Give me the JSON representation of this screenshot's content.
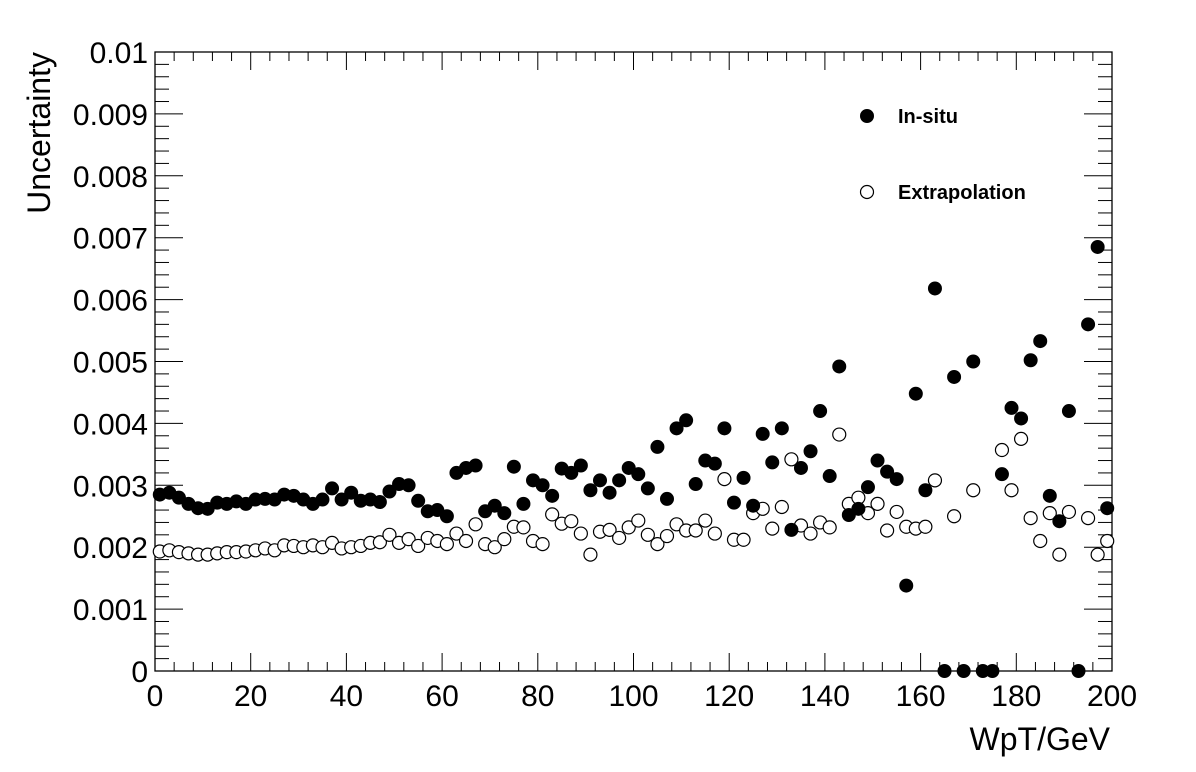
{
  "chart_data": {
    "type": "scatter",
    "title": "",
    "xlabel": "WpT/GeV",
    "ylabel": "Uncertainty",
    "xlim": [
      0,
      200
    ],
    "ylim": [
      0,
      0.01
    ],
    "x_ticks": [
      0,
      20,
      40,
      60,
      80,
      100,
      120,
      140,
      160,
      180,
      200
    ],
    "x_tick_labels": [
      "0",
      "20",
      "40",
      "60",
      "80",
      "100",
      "120",
      "140",
      "160",
      "180",
      "200"
    ],
    "y_ticks": [
      0,
      0.001,
      0.002,
      0.003,
      0.004,
      0.005,
      0.006,
      0.007,
      0.008,
      0.009,
      0.01
    ],
    "y_tick_labels": [
      "0",
      "0.001",
      "0.002",
      "0.003",
      "0.004",
      "0.005",
      "0.006",
      "0.007",
      "0.008",
      "0.009",
      "0.01"
    ],
    "grid": false,
    "legend_position": "top-right",
    "x": [
      1,
      3,
      5,
      7,
      9,
      11,
      13,
      15,
      17,
      19,
      21,
      23,
      25,
      27,
      29,
      31,
      33,
      35,
      37,
      39,
      41,
      43,
      45,
      47,
      49,
      51,
      53,
      55,
      57,
      59,
      61,
      63,
      65,
      67,
      69,
      71,
      73,
      75,
      77,
      79,
      81,
      83,
      85,
      87,
      89,
      91,
      93,
      95,
      97,
      99,
      101,
      103,
      105,
      107,
      109,
      111,
      113,
      115,
      117,
      119,
      121,
      123,
      125,
      127,
      129,
      131,
      133,
      135,
      137,
      139,
      141,
      143,
      145,
      147,
      149,
      151,
      153,
      155,
      157,
      159,
      161,
      163,
      165,
      167,
      169,
      171,
      173,
      175,
      177,
      179,
      181,
      183,
      185,
      187,
      189,
      191,
      193,
      195,
      197,
      199
    ],
    "series": [
      {
        "name": "In-situ",
        "marker": "filled-circle",
        "color": "#000000",
        "values": [
          0.00285,
          0.00288,
          0.0028,
          0.0027,
          0.00263,
          0.00262,
          0.00272,
          0.0027,
          0.00274,
          0.0027,
          0.00277,
          0.00278,
          0.00277,
          0.00285,
          0.00283,
          0.00277,
          0.0027,
          0.00277,
          0.00295,
          0.00277,
          0.00288,
          0.00275,
          0.00277,
          0.00273,
          0.0029,
          0.00302,
          0.003,
          0.00275,
          0.00258,
          0.0026,
          0.0025,
          0.0032,
          0.00328,
          0.00332,
          0.00258,
          0.00267,
          0.00255,
          0.0033,
          0.0027,
          0.00308,
          0.003,
          0.00283,
          0.00327,
          0.0032,
          0.00332,
          0.00292,
          0.00308,
          0.00288,
          0.00308,
          0.00328,
          0.00318,
          0.00295,
          0.00362,
          0.00278,
          0.00392,
          0.00405,
          0.00302,
          0.0034,
          0.00335,
          0.00392,
          0.00272,
          0.00312,
          0.00267,
          0.00383,
          0.00337,
          0.00392,
          0.00228,
          0.00328,
          0.00355,
          0.0042,
          0.00315,
          0.00492,
          0.00252,
          0.00262,
          0.00297,
          0.0034,
          0.00322,
          0.0031,
          0.00138,
          0.00448,
          0.00292,
          0.00618,
          0.0,
          0.00475,
          0.0,
          0.005,
          0.0,
          0.0,
          0.00318,
          0.00425,
          0.00408,
          0.00502,
          0.00533,
          0.00283,
          0.00242,
          0.0042,
          0.0,
          0.0056,
          0.00685,
          0.00263
        ]
      },
      {
        "name": "Extrapolation",
        "marker": "open-circle",
        "color": "#000000",
        "values": [
          0.00193,
          0.00195,
          0.00192,
          0.0019,
          0.00188,
          0.00188,
          0.0019,
          0.00192,
          0.00192,
          0.00193,
          0.00195,
          0.00198,
          0.00195,
          0.00203,
          0.00202,
          0.002,
          0.00203,
          0.002,
          0.00207,
          0.00198,
          0.002,
          0.00202,
          0.00207,
          0.00208,
          0.0022,
          0.00207,
          0.00213,
          0.00202,
          0.00215,
          0.0021,
          0.00205,
          0.00222,
          0.0021,
          0.00237,
          0.00205,
          0.002,
          0.00213,
          0.00233,
          0.00232,
          0.0021,
          0.00205,
          0.00253,
          0.00238,
          0.00242,
          0.00222,
          0.00188,
          0.00225,
          0.00228,
          0.00215,
          0.00232,
          0.00243,
          0.0022,
          0.00205,
          0.00218,
          0.00237,
          0.00227,
          0.00227,
          0.00243,
          0.00222,
          0.0031,
          0.00212,
          0.00212,
          0.00255,
          0.00262,
          0.0023,
          0.00265,
          0.00342,
          0.00235,
          0.00222,
          0.0024,
          0.00232,
          0.00382,
          0.0027,
          0.0028,
          0.00255,
          0.0027,
          0.00227,
          0.00257,
          0.00233,
          0.0023,
          0.00233,
          0.00308,
          null,
          0.0025,
          null,
          0.00292,
          null,
          null,
          0.00357,
          0.00292,
          0.00375,
          0.00247,
          0.0021,
          0.00255,
          0.00188,
          0.00257,
          null,
          0.00247,
          0.00188,
          0.0021
        ]
      }
    ]
  }
}
